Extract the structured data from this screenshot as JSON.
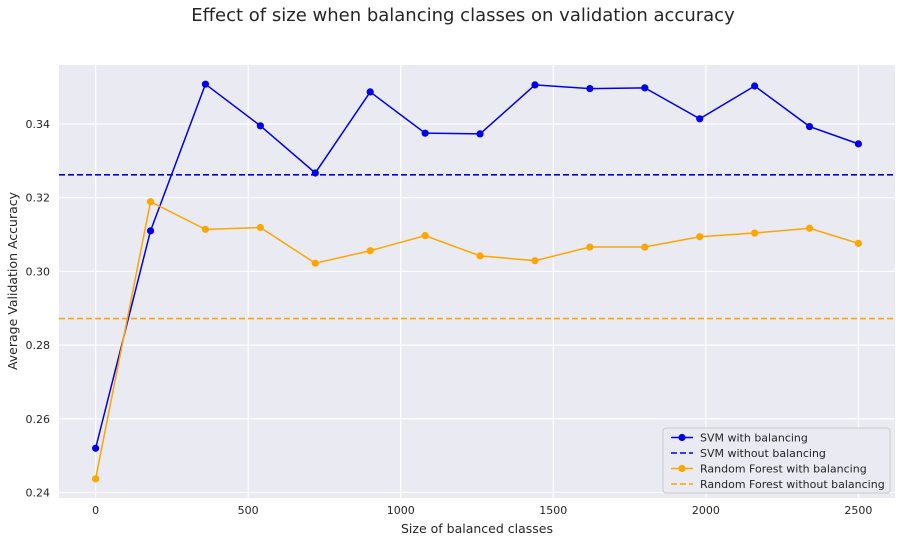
{
  "chart_data": {
    "type": "line",
    "title": "Effect of size when balancing classes on validation accuracy",
    "xlabel": "Size of balanced classes",
    "ylabel": "Average Validation Accuracy",
    "xlim": [
      -120,
      2620
    ],
    "ylim": [
      0.2385,
      0.356
    ],
    "xticks": [
      0,
      500,
      1000,
      1500,
      2000,
      2500
    ],
    "xtick_labels": [
      "0",
      "500",
      "1000",
      "1500",
      "2000",
      "2500"
    ],
    "yticks": [
      0.24,
      0.26,
      0.28,
      0.3,
      0.32,
      0.34
    ],
    "ytick_labels": [
      "0.24",
      "0.26",
      "0.28",
      "0.30",
      "0.32",
      "0.34"
    ],
    "grid": true,
    "legend_position": "bottom-right",
    "x": [
      0,
      180,
      360,
      540,
      720,
      900,
      1080,
      1260,
      1440,
      1620,
      1800,
      1980,
      2160,
      2340,
      2500
    ],
    "series": [
      {
        "name": "SVM with balancing",
        "style": "solid-marker",
        "color": "#0000ee",
        "values": [
          0.252,
          0.311,
          0.3508,
          0.3395,
          0.3267,
          0.3487,
          0.3375,
          0.3373,
          0.3506,
          0.3496,
          0.3498,
          0.3414,
          0.3503,
          0.3393,
          0.3346
        ]
      },
      {
        "name": "SVM without balancing",
        "style": "dashed-hline",
        "color": "#0000ee",
        "value": 0.3262
      },
      {
        "name": "Random Forest with balancing",
        "style": "solid-marker",
        "color": "#ffa500",
        "values": [
          0.2437,
          0.3189,
          0.3114,
          0.3119,
          0.3022,
          0.3056,
          0.3097,
          0.3042,
          0.3029,
          0.3066,
          0.3066,
          0.3094,
          0.3104,
          0.3117,
          0.3076
        ]
      },
      {
        "name": "Random Forest without balancing",
        "style": "dashed-hline",
        "color": "#ffa500",
        "value": 0.2872
      }
    ]
  }
}
